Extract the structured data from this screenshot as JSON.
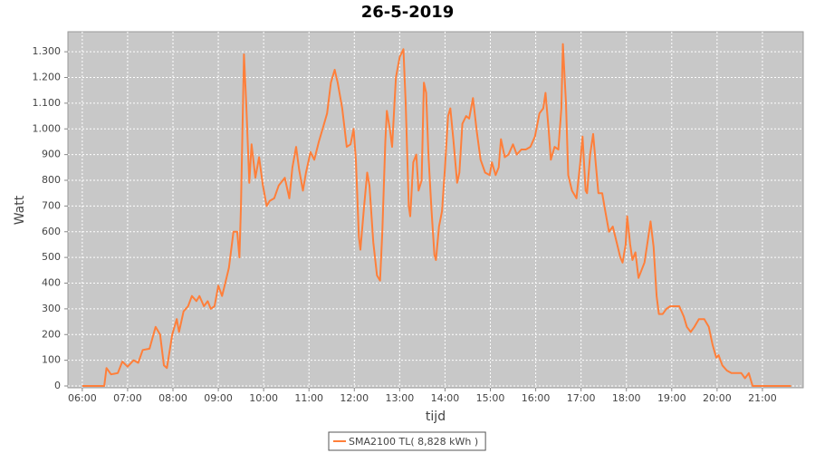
{
  "chart_data": {
    "type": "line",
    "title": "26-5-2019",
    "x_label": "tijd",
    "y_label": "Watt",
    "x": [
      "06:00",
      "06:29",
      "06:32",
      "06:38",
      "06:47",
      "06:53",
      "07:00",
      "07:08",
      "07:14",
      "07:20",
      "07:29",
      "07:37",
      "07:43",
      "07:48",
      "07:52",
      "07:59",
      "08:05",
      "08:08",
      "08:14",
      "08:20",
      "08:25",
      "08:31",
      "08:35",
      "08:41",
      "08:46",
      "08:50",
      "08:55",
      "09:00",
      "09:05",
      "09:10",
      "09:14",
      "09:20",
      "09:25",
      "09:28",
      "09:30",
      "09:34",
      "09:37",
      "09:41",
      "09:44",
      "09:49",
      "09:54",
      "09:59",
      "10:04",
      "10:08",
      "10:14",
      "10:20",
      "10:28",
      "10:34",
      "10:38",
      "10:43",
      "10:47",
      "10:52",
      "10:56",
      "11:02",
      "11:07",
      "11:13",
      "11:19",
      "11:24",
      "11:29",
      "11:34",
      "11:38",
      "11:44",
      "11:50",
      "11:55",
      "11:59",
      "12:02",
      "12:06",
      "12:08",
      "12:13",
      "12:17",
      "12:20",
      "12:25",
      "12:30",
      "12:34",
      "12:37",
      "12:41",
      "12:43",
      "12:47",
      "12:50",
      "12:55",
      "13:00",
      "13:05",
      "13:08",
      "13:12",
      "13:14",
      "13:18",
      "13:22",
      "13:25",
      "13:29",
      "13:32",
      "13:35",
      "13:38",
      "13:42",
      "13:46",
      "13:48",
      "13:52",
      "13:56",
      "14:00",
      "14:04",
      "14:07",
      "14:11",
      "14:16",
      "14:19",
      "14:23",
      "14:28",
      "14:32",
      "14:37",
      "14:42",
      "14:47",
      "14:53",
      "14:59",
      "15:02",
      "15:07",
      "15:11",
      "15:14",
      "15:19",
      "15:24",
      "15:30",
      "15:35",
      "15:41",
      "15:47",
      "15:53",
      "15:59",
      "16:05",
      "16:10",
      "16:13",
      "16:17",
      "16:20",
      "16:25",
      "16:30",
      "16:34",
      "16:36",
      "16:40",
      "16:43",
      "16:48",
      "16:54",
      "16:59",
      "17:02",
      "17:06",
      "17:08",
      "17:12",
      "17:16",
      "17:19",
      "17:23",
      "17:28",
      "17:32",
      "17:37",
      "17:42",
      "17:47",
      "17:52",
      "17:55",
      "17:59",
      "18:01",
      "18:05",
      "18:08",
      "18:12",
      "18:16",
      "18:20",
      "18:24",
      "18:28",
      "18:32",
      "18:36",
      "18:40",
      "18:43",
      "18:48",
      "18:53",
      "18:58",
      "19:04",
      "19:10",
      "19:16",
      "19:20",
      "19:25",
      "19:30",
      "19:36",
      "19:43",
      "19:49",
      "19:54",
      "19:59",
      "20:02",
      "20:07",
      "20:13",
      "20:19",
      "20:26",
      "20:32",
      "20:37",
      "20:42",
      "20:47",
      "21:38"
    ],
    "series": [
      {
        "name": "SMA2100 TL( 8,828 kWh )",
        "color": "#ff7f3a",
        "values": [
          0,
          0,
          70,
          45,
          50,
          95,
          75,
          100,
          90,
          140,
          145,
          230,
          200,
          80,
          70,
          200,
          260,
          210,
          290,
          310,
          350,
          330,
          350,
          310,
          330,
          300,
          310,
          390,
          350,
          410,
          460,
          600,
          600,
          500,
          700,
          1290,
          1100,
          790,
          940,
          810,
          890,
          780,
          700,
          720,
          730,
          780,
          810,
          730,
          850,
          930,
          840,
          760,
          830,
          910,
          880,
          950,
          1010,
          1060,
          1180,
          1230,
          1180,
          1080,
          930,
          940,
          1000,
          880,
          580,
          530,
          700,
          830,
          780,
          560,
          430,
          410,
          600,
          950,
          1070,
          1000,
          930,
          1200,
          1280,
          1310,
          1100,
          700,
          660,
          870,
          900,
          760,
          800,
          1180,
          1140,
          900,
          690,
          510,
          490,
          620,
          680,
          850,
          1050,
          1080,
          960,
          790,
          830,
          1020,
          1050,
          1040,
          1120,
          990,
          880,
          830,
          820,
          870,
          820,
          850,
          960,
          890,
          900,
          940,
          900,
          920,
          920,
          930,
          970,
          1060,
          1080,
          1140,
          1000,
          880,
          930,
          920,
          1080,
          1330,
          1100,
          820,
          760,
          730,
          870,
          970,
          760,
          750,
          900,
          980,
          880,
          750,
          750,
          680,
          600,
          620,
          560,
          500,
          480,
          550,
          660,
          550,
          490,
          520,
          420,
          450,
          480,
          560,
          640,
          540,
          350,
          280,
          280,
          300,
          310,
          310,
          310,
          270,
          230,
          210,
          230,
          260,
          260,
          230,
          160,
          110,
          120,
          80,
          60,
          50,
          50,
          50,
          30,
          50,
          0,
          0
        ]
      }
    ],
    "xlim": [
      "05:41",
      "21:54"
    ],
    "xticks": [
      "06:00",
      "07:00",
      "08:00",
      "09:00",
      "10:00",
      "11:00",
      "12:00",
      "13:00",
      "14:00",
      "15:00",
      "16:00",
      "17:00",
      "18:00",
      "19:00",
      "20:00",
      "21:00"
    ],
    "ylim": [
      -7,
      1378
    ],
    "yticks": [
      0,
      100,
      200,
      300,
      400,
      500,
      600,
      700,
      800,
      900,
      {
        "value": 1000,
        "label": "1.000"
      },
      {
        "value": 1100,
        "label": "1.100"
      },
      {
        "value": 1200,
        "label": "1.200"
      },
      {
        "value": 1300,
        "label": "1.300"
      }
    ],
    "grid": true,
    "legend": "bottom",
    "background": "#c8c8c8"
  }
}
